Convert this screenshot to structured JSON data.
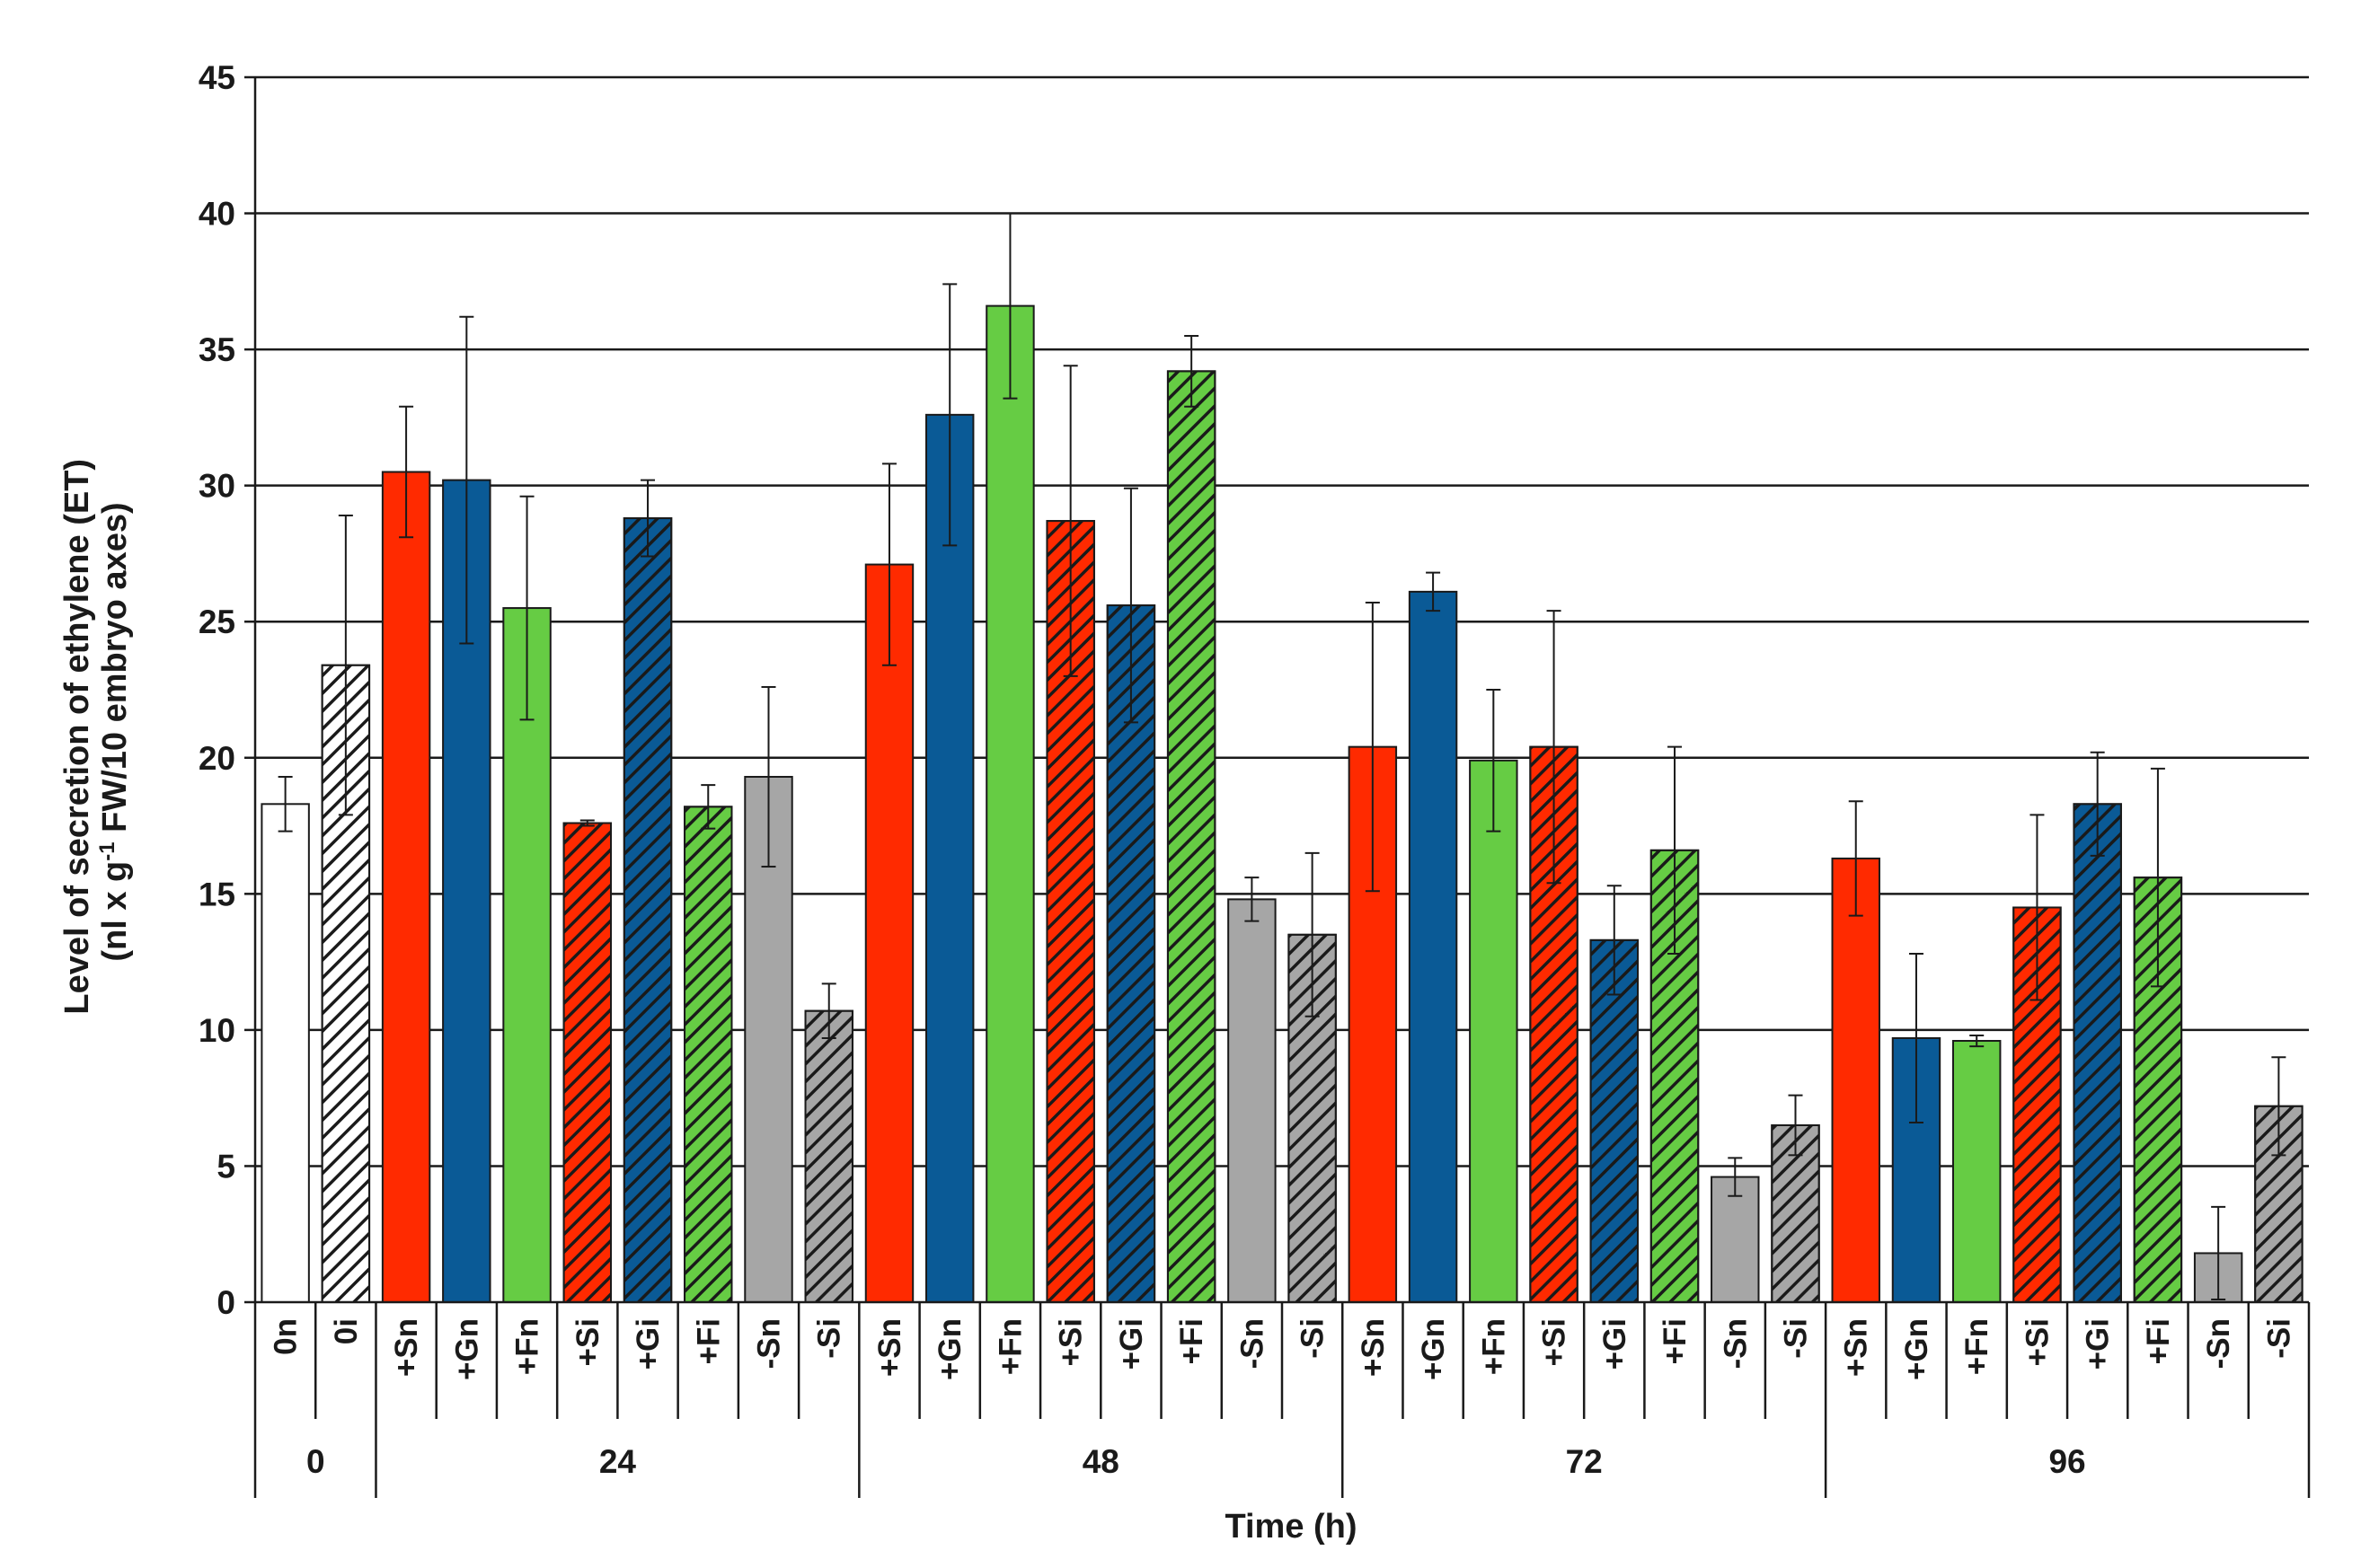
{
  "chart_data": {
    "type": "bar",
    "ylabel_line1": "Level of secretion of ethylene (ET)",
    "ylabel_line2_prefix": "(nl x g",
    "ylabel_line2_sup": "-1",
    "ylabel_line2_suffix": " FW/10 embryo axes)",
    "xlabel": "Time (h)",
    "ylim": [
      0,
      45
    ],
    "yticks": [
      0,
      5,
      10,
      15,
      20,
      25,
      30,
      35,
      40,
      45
    ],
    "grid": true,
    "colors": {
      "S": "#ff2a00",
      "G": "#0a5a96",
      "F": "#66cc44",
      "-": "#a6a6a6",
      "0": "#ffffff"
    },
    "groups": [
      {
        "label": "0",
        "bars": [
          {
            "label": "0n",
            "value": 18.3,
            "err": 1.0,
            "color": "#ffffff",
            "hatch": false
          },
          {
            "label": "0i",
            "value": 23.4,
            "err": 5.5,
            "color": "#ffffff",
            "hatch": true
          }
        ]
      },
      {
        "label": "24",
        "bars": [
          {
            "label": "+Sn",
            "value": 30.5,
            "err": 2.4,
            "color": "#ff2a00",
            "hatch": false
          },
          {
            "label": "+Gn",
            "value": 30.2,
            "err": 6.0,
            "color": "#0a5a96",
            "hatch": false
          },
          {
            "label": "+Fn",
            "value": 25.5,
            "err": 4.1,
            "color": "#66cc44",
            "hatch": false
          },
          {
            "label": "+Si",
            "value": 17.6,
            "err": 0.1,
            "color": "#ff2a00",
            "hatch": true
          },
          {
            "label": "+Gi",
            "value": 28.8,
            "err": 1.4,
            "color": "#0a5a96",
            "hatch": true
          },
          {
            "label": "+Fi",
            "value": 18.2,
            "err": 0.8,
            "color": "#66cc44",
            "hatch": true
          },
          {
            "label": "-Sn",
            "value": 19.3,
            "err": 3.3,
            "color": "#a6a6a6",
            "hatch": false
          },
          {
            "label": "-Si",
            "value": 10.7,
            "err": 1.0,
            "color": "#a6a6a6",
            "hatch": true
          }
        ]
      },
      {
        "label": "48",
        "bars": [
          {
            "label": "+Sn",
            "value": 27.1,
            "err": 3.7,
            "color": "#ff2a00",
            "hatch": false
          },
          {
            "label": "+Gn",
            "value": 32.6,
            "err": 4.8,
            "color": "#0a5a96",
            "hatch": false
          },
          {
            "label": "+Fn",
            "value": 36.6,
            "err": 3.4,
            "color": "#66cc44",
            "hatch": false
          },
          {
            "label": "+Si",
            "value": 28.7,
            "err": 5.7,
            "color": "#ff2a00",
            "hatch": true
          },
          {
            "label": "+Gi",
            "value": 25.6,
            "err": 4.3,
            "color": "#0a5a96",
            "hatch": true
          },
          {
            "label": "+Fi",
            "value": 34.2,
            "err": 1.3,
            "color": "#66cc44",
            "hatch": true
          },
          {
            "label": "-Sn",
            "value": 14.8,
            "err": 0.8,
            "color": "#a6a6a6",
            "hatch": false
          },
          {
            "label": "-Si",
            "value": 13.5,
            "err": 3.0,
            "color": "#a6a6a6",
            "hatch": true
          }
        ]
      },
      {
        "label": "72",
        "bars": [
          {
            "label": "+Sn",
            "value": 20.4,
            "err": 5.3,
            "color": "#ff2a00",
            "hatch": false
          },
          {
            "label": "+Gn",
            "value": 26.1,
            "err": 0.7,
            "color": "#0a5a96",
            "hatch": false
          },
          {
            "label": "+Fn",
            "value": 19.9,
            "err": 2.6,
            "color": "#66cc44",
            "hatch": false
          },
          {
            "label": "+Si",
            "value": 20.4,
            "err": 5.0,
            "color": "#ff2a00",
            "hatch": true
          },
          {
            "label": "+Gi",
            "value": 13.3,
            "err": 2.0,
            "color": "#0a5a96",
            "hatch": true
          },
          {
            "label": "+Fi",
            "value": 16.6,
            "err": 3.8,
            "color": "#66cc44",
            "hatch": true
          },
          {
            "label": "-Sn",
            "value": 4.6,
            "err": 0.7,
            "color": "#a6a6a6",
            "hatch": false
          },
          {
            "label": "-Si",
            "value": 6.5,
            "err": 1.1,
            "color": "#a6a6a6",
            "hatch": true
          }
        ]
      },
      {
        "label": "96",
        "bars": [
          {
            "label": "+Sn",
            "value": 16.3,
            "err": 2.1,
            "color": "#ff2a00",
            "hatch": false
          },
          {
            "label": "+Gn",
            "value": 9.7,
            "err": 3.1,
            "color": "#0a5a96",
            "hatch": false
          },
          {
            "label": "+Fn",
            "value": 9.6,
            "err": 0.2,
            "color": "#66cc44",
            "hatch": false
          },
          {
            "label": "+Si",
            "value": 14.5,
            "err": 3.4,
            "color": "#ff2a00",
            "hatch": true
          },
          {
            "label": "+Gi",
            "value": 18.3,
            "err": 1.9,
            "color": "#0a5a96",
            "hatch": true
          },
          {
            "label": "+Fi",
            "value": 15.6,
            "err": 4.0,
            "color": "#66cc44",
            "hatch": true
          },
          {
            "label": "-Sn",
            "value": 1.8,
            "err": 1.7,
            "color": "#a6a6a6",
            "hatch": false
          },
          {
            "label": "-Si",
            "value": 7.2,
            "err": 1.8,
            "color": "#a6a6a6",
            "hatch": true
          }
        ]
      }
    ]
  }
}
